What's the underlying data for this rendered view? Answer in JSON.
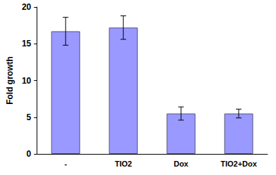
{
  "chart_data": {
    "type": "bar",
    "y_label": "Fold growth",
    "categories": [
      "-",
      "TIO2",
      "Dox",
      "TIO2+Dox"
    ],
    "values": [
      16.7,
      17.2,
      5.5,
      5.5
    ],
    "errors": [
      1.9,
      1.6,
      0.9,
      0.6
    ],
    "color": "#9999ff",
    "ylim": [
      0,
      20
    ],
    "yticks": [
      0,
      5,
      10,
      15,
      20
    ],
    "grid": false
  }
}
